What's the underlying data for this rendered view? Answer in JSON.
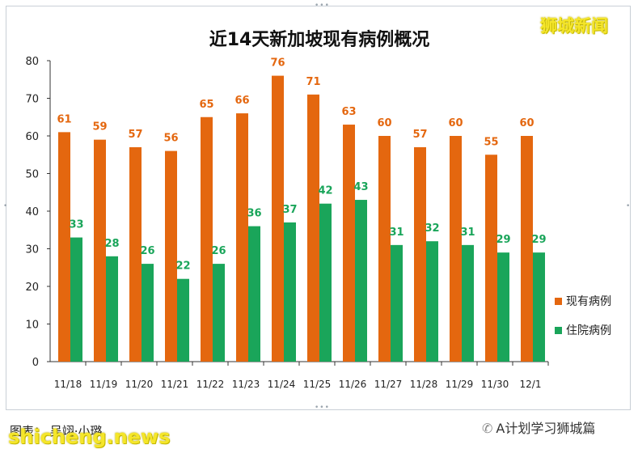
{
  "chart_data": {
    "type": "bar",
    "title": "近14天新加坡现有病例概况",
    "categories": [
      "11/18",
      "11/19",
      "11/20",
      "11/21",
      "11/22",
      "11/23",
      "11/24",
      "11/25",
      "11/26",
      "11/27",
      "11/28",
      "11/29",
      "11/30",
      "12/1"
    ],
    "series": [
      {
        "name": "现有病例",
        "color": "#e4670f",
        "label_color": "#e4670f",
        "values": [
          61,
          59,
          57,
          56,
          65,
          66,
          76,
          71,
          63,
          60,
          57,
          60,
          55,
          60
        ]
      },
      {
        "name": "住院病例",
        "color": "#1aa55a",
        "label_color": "#1aa55a",
        "values": [
          33,
          28,
          26,
          22,
          26,
          36,
          37,
          42,
          43,
          31,
          32,
          31,
          29,
          29
        ]
      }
    ],
    "ylim": [
      0,
      80
    ],
    "yticks": [
      0,
      10,
      20,
      30,
      40,
      50,
      60,
      70,
      80
    ],
    "grid": false,
    "legend_position": "right"
  },
  "watermark_top": "狮城新闻",
  "footer": {
    "caption": "图表： 吴翊·小璐",
    "watermark_bottom": "shicheng.news",
    "wechat_icon": "wechat-icon",
    "wechat_text": "A计划学习狮城篇"
  }
}
